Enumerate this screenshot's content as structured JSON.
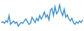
{
  "chart_data": {
    "type": "line",
    "categories": [
      null,
      null,
      null,
      null,
      null,
      null,
      null,
      null,
      null,
      null,
      null,
      null,
      null,
      null,
      null,
      null,
      null,
      null,
      null,
      null,
      null,
      null,
      null,
      null,
      null,
      null,
      null,
      null,
      null,
      null,
      null,
      null,
      null,
      null,
      null,
      null,
      null,
      null,
      null,
      null,
      null,
      null,
      null,
      null,
      null,
      null,
      null,
      null,
      null,
      null,
      null,
      null,
      null,
      null
    ],
    "values": [
      40,
      42,
      38,
      45,
      41,
      60,
      35,
      40,
      44,
      38,
      42,
      30,
      36,
      40,
      38,
      45,
      50,
      42,
      35,
      38,
      55,
      48,
      40,
      52,
      45,
      60,
      50,
      58,
      70,
      55,
      62,
      48,
      75,
      80,
      60,
      85,
      65,
      72,
      90,
      70,
      60,
      78,
      55,
      62,
      50,
      45,
      52,
      40,
      35,
      42,
      38,
      45,
      40,
      48
    ],
    "color": "#3b8fd6",
    "ylim": [
      20,
      100
    ],
    "grid": false,
    "tick_labels": false
  }
}
